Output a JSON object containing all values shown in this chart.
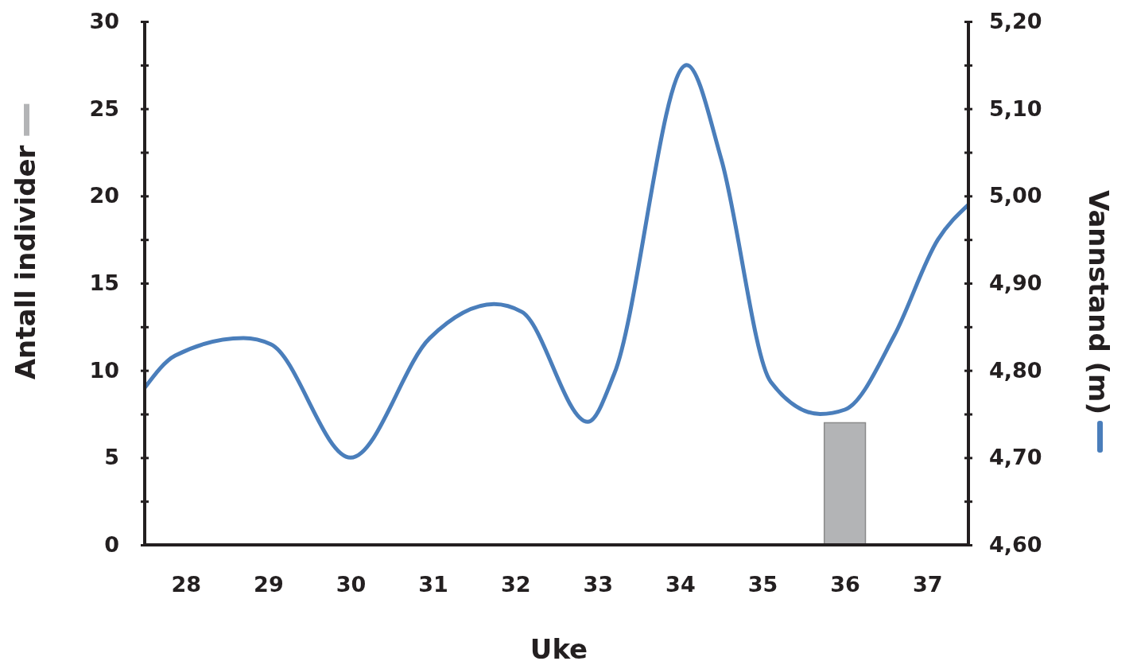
{
  "chart_data": {
    "type": "bar",
    "xlabel": "Uke",
    "ylabel": "Antall individer",
    "y2label": "Vannstand (m)",
    "xlim": [
      27.5,
      37.5
    ],
    "xticks": [
      28,
      29,
      30,
      31,
      32,
      33,
      34,
      35,
      36,
      37
    ],
    "ylim": [
      0,
      30
    ],
    "yticks": [
      0,
      {
        "value": 2.5,
        "label": null
      },
      5,
      {
        "value": 7.5,
        "label": null
      },
      10,
      {
        "value": 12.5,
        "label": null
      },
      15,
      {
        "value": 17.5,
        "label": null
      },
      20,
      {
        "value": 22.5,
        "label": null
      },
      25,
      {
        "value": 27.5,
        "label": null
      },
      30
    ],
    "y2lim": [
      4.6,
      5.2
    ],
    "y2ticks": [
      {
        "value": 4.6,
        "label": "4,60"
      },
      {
        "value": 4.65,
        "label": null
      },
      {
        "value": 4.7,
        "label": "4,70"
      },
      {
        "value": 4.75,
        "label": null
      },
      {
        "value": 4.8,
        "label": "4,80"
      },
      {
        "value": 4.85,
        "label": null
      },
      {
        "value": 4.9,
        "label": "4,90"
      },
      {
        "value": 4.95,
        "label": null
      },
      {
        "value": 5.0,
        "label": "5,00"
      },
      {
        "value": 5.05,
        "label": null
      },
      {
        "value": 5.1,
        "label": "5,10"
      },
      {
        "value": 5.15,
        "label": null
      },
      {
        "value": 5.2,
        "label": "5,20"
      }
    ],
    "grid": false,
    "series": [
      {
        "color": "#b3b4b6",
        "x": [
          28,
          29,
          30,
          31,
          32,
          33,
          34,
          35,
          36,
          37
        ],
        "values": [
          0,
          0,
          0,
          0,
          0,
          0,
          0,
          0,
          7,
          0
        ]
      },
      {
        "type": "line",
        "axis": "y2",
        "color": "#4a7ebb",
        "x": [
          27.5,
          27.87,
          28.7,
          29.03,
          30.0,
          30.96,
          31.74,
          32.08,
          32.88,
          33.2,
          34.08,
          34.5,
          35.1,
          35.7,
          36.0,
          36.6,
          37.13,
          37.5
        ],
        "values": [
          4.78,
          4.817,
          4.837,
          4.83,
          4.7,
          4.837,
          4.876,
          4.867,
          4.741,
          4.796,
          5.15,
          5.042,
          4.787,
          4.75,
          4.755,
          4.84,
          4.95,
          4.99
        ]
      }
    ]
  }
}
